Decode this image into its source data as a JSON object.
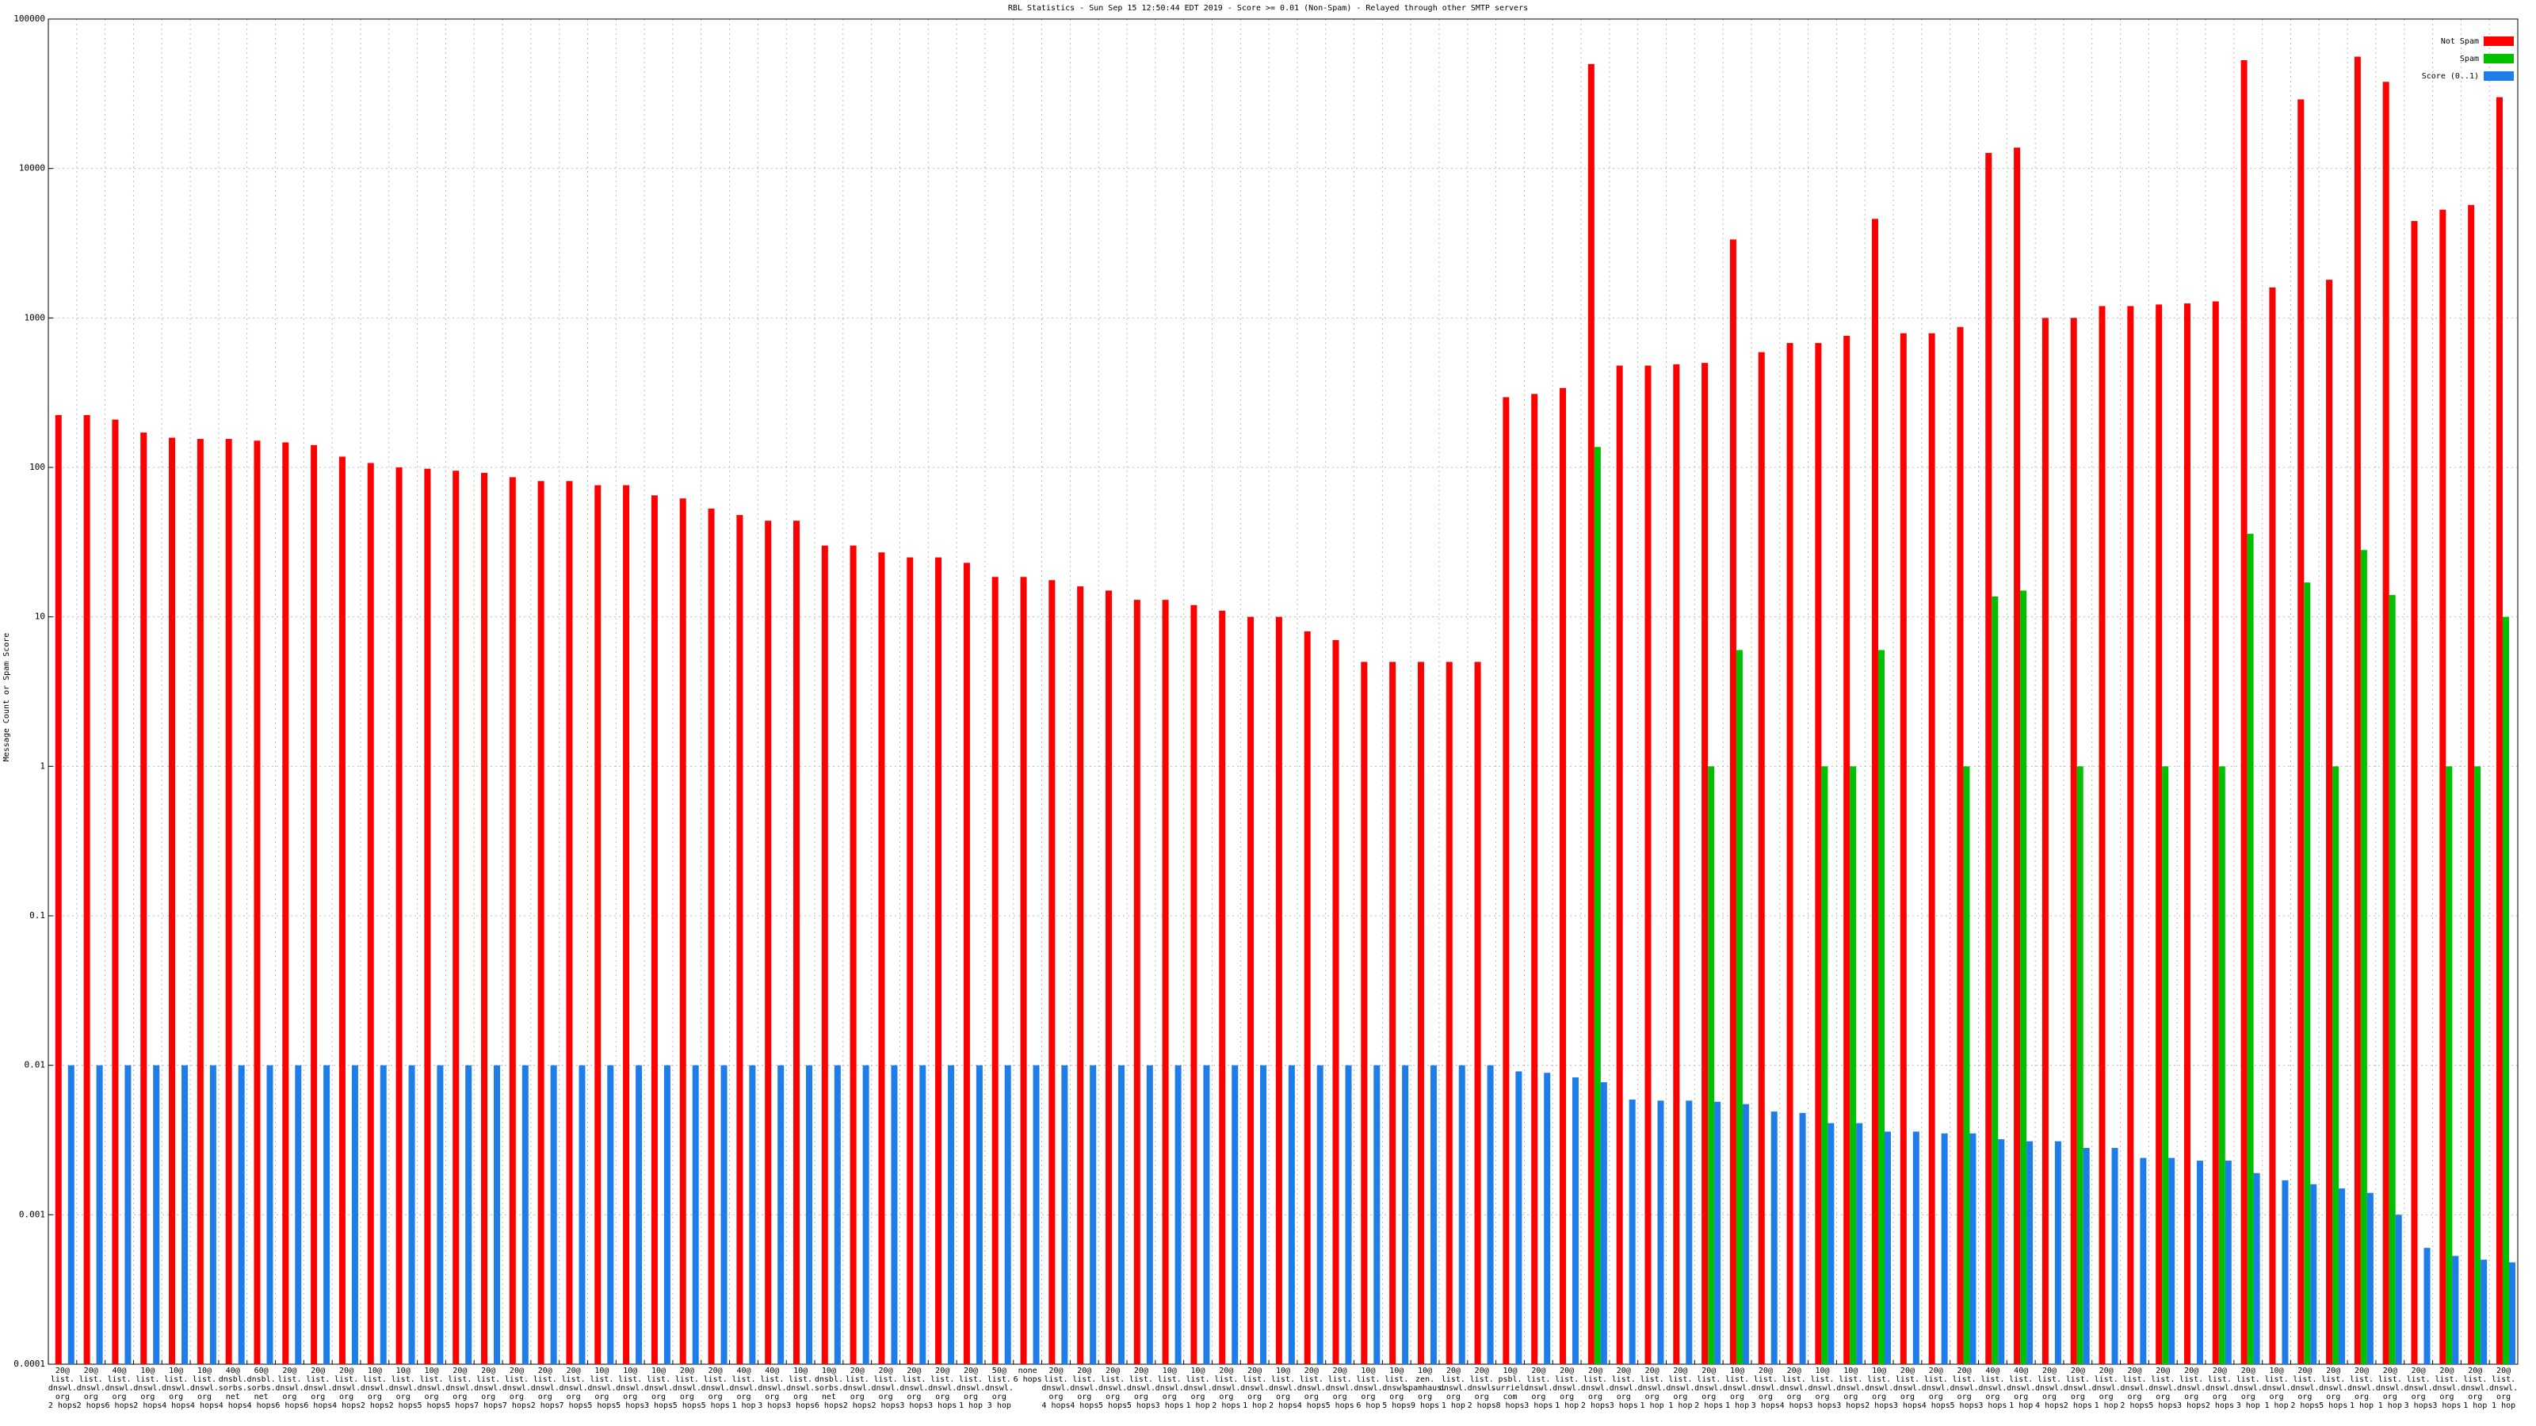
{
  "chart_data": {
    "type": "bar",
    "title": "RBL Statistics - Sun Sep 15 12:50:44 EDT 2019 - Score >= 0.01 (Non-Spam) - Relayed through other SMTP servers",
    "y_label": "Message Count or Spam Score",
    "log_scale": true,
    "grid": true,
    "legend": "top-right",
    "ylim": [
      0.0001,
      100000
    ],
    "yticks": [
      0.0001,
      0.001,
      0.01,
      0.1,
      1,
      10,
      100,
      1000,
      10000,
      100000
    ],
    "categories": [
      "20@ list.dnswl.org 2 hops",
      "20@ list.dnswl.org 2 hops",
      "40@ list.dnswl.org 6 hops",
      "10@ list.dnswl.org 2 hops",
      "10@ list.dnswl.org 4 hops",
      "10@ list.dnswl.org 4 hops",
      "40@ dnsbl.sorbs.net 4 hops",
      "60@ dnsbl.sorbs.net 4 hops",
      "20@ list.dnswl.org 6 hops",
      "20@ list.dnswl.org 6 hops",
      "20@ list.dnswl.org 4 hops",
      "10@ list.dnswl.org 2 hops",
      "10@ list.dnswl.org 2 hops",
      "10@ list.dnswl.org 5 hops",
      "20@ list.dnswl.org 5 hops",
      "20@ list.dnswl.org 7 hops",
      "20@ list.dnswl.org 7 hops",
      "20@ list.dnswl.org 2 hops",
      "20@ list.dnswl.org 7 hops",
      "10@ list.dnswl.org 5 hops",
      "10@ list.dnswl.org 5 hops",
      "10@ list.dnswl.org 3 hops",
      "20@ list.dnswl.org 5 hops",
      "20@ list.dnswl.org 5 hops",
      "40@ list.dnswl.org 1 hop",
      "40@ list.dnswl.org 3 hops",
      "10@ list.dnswl.org 3 hops",
      "10@ dnsbl.sorbs.net 6 hops",
      "20@ list.dnswl.org 2 hops",
      "20@ list.dnswl.org 2 hops",
      "20@ list.dnswl.org 3 hops",
      "20@ list.dnswl.org 3 hops",
      "20@ list.dnswl.org 1 hop",
      "50@ list.dnswl.org 3 hop",
      "none 6 hops",
      "20@ list.dnswl.org 4 hops",
      "20@ list.dnswl.org 4 hops",
      "20@ list.dnswl.org 5 hops",
      "20@ list.dnswl.org 5 hops",
      "10@ list.dnswl.org 3 hops",
      "10@ list.dnswl.org 1 hop",
      "20@ list.dnswl.org 2 hops",
      "20@ list.dnswl.org 1 hop",
      "10@ list.dnswl.org 2 hops",
      "20@ list.dnswl.org 4 hops",
      "20@ list.dnswl.org 5 hops",
      "10@ list.dnswl.org 6 hop",
      "10@ list.dnswl.org 5 hops",
      "10@ zen.spamhaus.org 9 hops",
      "20@ list.dnswl.org 1 hop",
      "20@ list.dnswl.org 2 hops",
      "10@ psbl.surriel.com 8 hops",
      "20@ list.dnswl.org 3 hops",
      "20@ list.dnswl.org 1 hop",
      "20@ list.dnswl.org 2 hops",
      "20@ list.dnswl.org 3 hops",
      "20@ list.dnswl.org 1 hop",
      "20@ list.dnswl.org 1 hop",
      "20@ list.dnswl.org 2 hops",
      "10@ list.dnswl.org 1 hop",
      "20@ list.dnswl.org 3 hops",
      "20@ list.dnswl.org 4 hops",
      "10@ list.dnswl.org 3 hops",
      "10@ list.dnswl.org 3 hops",
      "10@ list.dnswl.org 2 hops",
      "20@ list.dnswl.org 3 hops",
      "20@ list.dnswl.org 4 hops",
      "20@ list.dnswl.org 5 hops",
      "40@ list.dnswl.org 3 hops",
      "40@ list.dnswl.org 1 hop",
      "20@ list.dnswl.org 4 hops",
      "20@ list.dnswl.org 2 hops",
      "20@ list.dnswl.org 1 hop",
      "20@ list.dnswl.org 2 hops",
      "20@ list.dnswl.org 5 hops",
      "20@ list.dnswl.org 3 hops",
      "20@ list.dnswl.org 2 hops",
      "20@ list.dnswl.org 3 hop",
      "10@ list.dnswl.org 1 hop",
      "20@ list.dnswl.org 2 hops",
      "20@ list.dnswl.org 5 hops",
      "20@ list.dnswl.org 1 hop",
      "20@ list.dnswl.org 1 hop",
      "20@ list.dnswl.org 3 hops",
      "20@ list.dnswl.org 3 hops",
      "20@ list.dnswl.org 1 hop",
      "20@ list.dnswl.org 1 hop"
    ],
    "series": [
      {
        "name": "Not Spam",
        "color": "#ff0000",
        "values": [
          224,
          224,
          209,
          171,
          158,
          155,
          155,
          151,
          147,
          141,
          118,
          107,
          100,
          98,
          95,
          92,
          86,
          81,
          81,
          76,
          76,
          65,
          62,
          53,
          48,
          44,
          44,
          30,
          30,
          27,
          25,
          25,
          23,
          18.5,
          18.5,
          17.6,
          16,
          15,
          13,
          13,
          12,
          11,
          10,
          10,
          8,
          7,
          5,
          5,
          5,
          5,
          5,
          295,
          310,
          340,
          50000,
          480,
          480,
          490,
          500,
          3350,
          590,
          680,
          680,
          760,
          4600,
          790,
          790,
          870,
          12700,
          13800,
          1000,
          1000,
          1200,
          1200,
          1230,
          1250,
          1290,
          53000,
          1600,
          29000,
          1800,
          56000,
          38000,
          4450,
          5300,
          5700,
          30000
        ]
      },
      {
        "name": "Spam",
        "color": "#00c000",
        "values": [
          null,
          null,
          null,
          null,
          null,
          null,
          null,
          null,
          null,
          null,
          null,
          null,
          null,
          null,
          null,
          null,
          null,
          null,
          null,
          null,
          null,
          null,
          null,
          null,
          null,
          null,
          null,
          null,
          null,
          null,
          null,
          null,
          null,
          null,
          null,
          null,
          null,
          null,
          null,
          null,
          null,
          null,
          null,
          null,
          null,
          null,
          null,
          null,
          null,
          null,
          null,
          null,
          null,
          null,
          137,
          null,
          null,
          null,
          1,
          6,
          null,
          null,
          1,
          1,
          6,
          null,
          null,
          1,
          13.7,
          15,
          null,
          1,
          null,
          null,
          1,
          null,
          1,
          36,
          null,
          17,
          1,
          28,
          14,
          null,
          1,
          1,
          10
        ]
      },
      {
        "name": "Score (0..1)",
        "color": "#1e7de8",
        "values": [
          0.01,
          0.01,
          0.01,
          0.01,
          0.01,
          0.01,
          0.01,
          0.01,
          0.01,
          0.01,
          0.01,
          0.01,
          0.01,
          0.01,
          0.01,
          0.01,
          0.01,
          0.01,
          0.01,
          0.01,
          0.01,
          0.01,
          0.01,
          0.01,
          0.01,
          0.01,
          0.01,
          0.01,
          0.01,
          0.01,
          0.01,
          0.01,
          0.01,
          0.01,
          0.01,
          0.01,
          0.01,
          0.01,
          0.01,
          0.01,
          0.01,
          0.01,
          0.01,
          0.01,
          0.01,
          0.01,
          0.01,
          0.01,
          0.01,
          0.01,
          0.01,
          0.0091,
          0.0089,
          0.0083,
          0.0077,
          0.0059,
          0.0058,
          0.0058,
          0.0057,
          0.0055,
          0.0049,
          0.0048,
          0.0041,
          0.0041,
          0.0036,
          0.0036,
          0.0035,
          0.0035,
          0.0032,
          0.0031,
          0.0031,
          0.0028,
          0.0028,
          0.0024,
          0.0024,
          0.0023,
          0.0023,
          0.0019,
          0.0017,
          0.0016,
          0.0015,
          0.0014,
          0.001,
          0.0006,
          0.00053,
          0.0005,
          0.00048
        ]
      }
    ]
  }
}
